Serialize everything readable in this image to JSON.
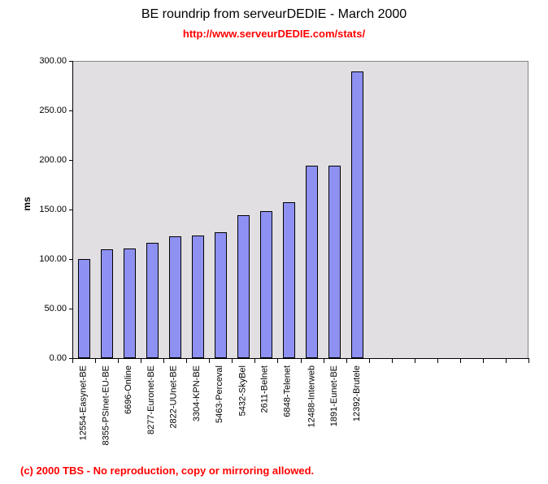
{
  "title": "BE roundrip from serveurDEDIE - March 2000",
  "subtitle": "http://www.serveurDEDIE.com/stats/",
  "footer": "(c) 2000 TBS - No reproduction, copy or mirroring allowed.",
  "colors": {
    "bar_fill": "#8e91f2",
    "bar_border": "#000000",
    "plot_background": "#e2dfe2",
    "plot_border": "#848484",
    "accent_red": "#ff0000",
    "axis": "#000000"
  },
  "chart_data": {
    "type": "bar",
    "title": "BE roundrip from serveurDEDIE - March 2000",
    "subtitle": "http://www.serveurDEDIE.com/stats/",
    "xlabel": "",
    "ylabel": "ms",
    "ylim": [
      0,
      300
    ],
    "yticks": [
      0,
      50,
      100,
      150,
      200,
      250,
      300
    ],
    "ytick_labels": [
      "0.00",
      "50.00",
      "100.00",
      "150.00",
      "200.00",
      "250.00",
      "300.00"
    ],
    "grid": false,
    "legend_position": "none",
    "total_category_slots": 20,
    "categories": [
      "12554-Easynet-BE",
      "8355-PSInet-EU-BE",
      "6696-Online",
      "8277-Euronet-BE",
      "2822-UUnet-BE",
      "3304-KPN-BE",
      "5463-Perceval",
      "5432-SkyBel",
      "2611-Belnet",
      "6848-Telenet",
      "12488-Interweb",
      "1891-Eunet-BE",
      "12392-Brutele"
    ],
    "values": [
      100,
      110,
      111,
      116,
      123,
      124,
      127,
      144,
      148,
      157,
      194,
      194,
      289
    ]
  }
}
